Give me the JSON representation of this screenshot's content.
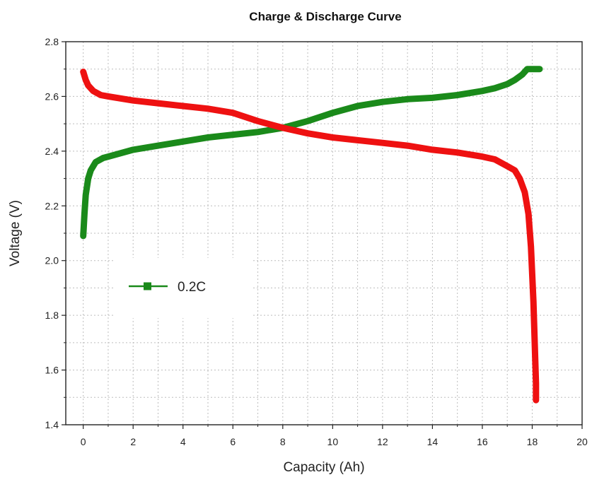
{
  "chart_data": {
    "type": "line",
    "title": "Charge & Discharge Curve",
    "xlabel": "Capacity (Ah)",
    "ylabel": "Voltage (V)",
    "xlim": [
      -0.7,
      20
    ],
    "ylim": [
      1.4,
      2.8
    ],
    "x_ticks": [
      0,
      2,
      4,
      6,
      8,
      10,
      12,
      14,
      16,
      18,
      20
    ],
    "x_tick_labels": [
      "0",
      "2",
      "4",
      "6",
      "8",
      "10",
      "12",
      "14",
      "16",
      "18",
      "20"
    ],
    "y_ticks": [
      1.4,
      1.6,
      1.8,
      2.0,
      2.2,
      2.4,
      2.6,
      2.8
    ],
    "y_tick_labels": [
      "1.4",
      "1.6",
      "1.8",
      "2.0",
      "2.2",
      "2.4",
      "2.6",
      "2.8"
    ],
    "grid": true,
    "legend_position": "middle-left",
    "legend": [
      {
        "label": "0.2C",
        "color": "#1a8a1a",
        "marker": "square"
      }
    ],
    "series": [
      {
        "name": "0.2C",
        "color": "#1a8a1a",
        "points": [
          [
            0.0,
            2.09
          ],
          [
            0.05,
            2.17
          ],
          [
            0.1,
            2.24
          ],
          [
            0.2,
            2.3
          ],
          [
            0.3,
            2.33
          ],
          [
            0.5,
            2.36
          ],
          [
            0.8,
            2.375
          ],
          [
            1.0,
            2.38
          ],
          [
            2.0,
            2.405
          ],
          [
            3.0,
            2.42
          ],
          [
            4.0,
            2.435
          ],
          [
            5.0,
            2.45
          ],
          [
            6.0,
            2.46
          ],
          [
            7.0,
            2.47
          ],
          [
            8.0,
            2.485
          ],
          [
            9.0,
            2.51
          ],
          [
            10.0,
            2.54
          ],
          [
            11.0,
            2.565
          ],
          [
            12.0,
            2.58
          ],
          [
            13.0,
            2.59
          ],
          [
            14.0,
            2.595
          ],
          [
            15.0,
            2.605
          ],
          [
            16.0,
            2.62
          ],
          [
            16.5,
            2.63
          ],
          [
            17.0,
            2.645
          ],
          [
            17.3,
            2.66
          ],
          [
            17.6,
            2.68
          ],
          [
            17.8,
            2.7
          ],
          [
            18.3,
            2.7
          ]
        ]
      },
      {
        "color": "#ee1111",
        "points": [
          [
            0.0,
            2.69
          ],
          [
            0.1,
            2.66
          ],
          [
            0.2,
            2.64
          ],
          [
            0.4,
            2.62
          ],
          [
            0.7,
            2.605
          ],
          [
            1.0,
            2.6
          ],
          [
            2.0,
            2.585
          ],
          [
            3.0,
            2.575
          ],
          [
            4.0,
            2.565
          ],
          [
            5.0,
            2.555
          ],
          [
            6.0,
            2.54
          ],
          [
            7.0,
            2.51
          ],
          [
            8.0,
            2.485
          ],
          [
            9.0,
            2.465
          ],
          [
            10.0,
            2.45
          ],
          [
            11.0,
            2.44
          ],
          [
            12.0,
            2.43
          ],
          [
            13.0,
            2.42
          ],
          [
            14.0,
            2.405
          ],
          [
            15.0,
            2.395
          ],
          [
            16.0,
            2.38
          ],
          [
            16.5,
            2.37
          ],
          [
            17.0,
            2.345
          ],
          [
            17.3,
            2.33
          ],
          [
            17.5,
            2.3
          ],
          [
            17.7,
            2.25
          ],
          [
            17.85,
            2.17
          ],
          [
            17.95,
            2.05
          ],
          [
            18.05,
            1.85
          ],
          [
            18.1,
            1.7
          ],
          [
            18.15,
            1.55
          ],
          [
            18.15,
            1.49
          ]
        ]
      }
    ]
  }
}
